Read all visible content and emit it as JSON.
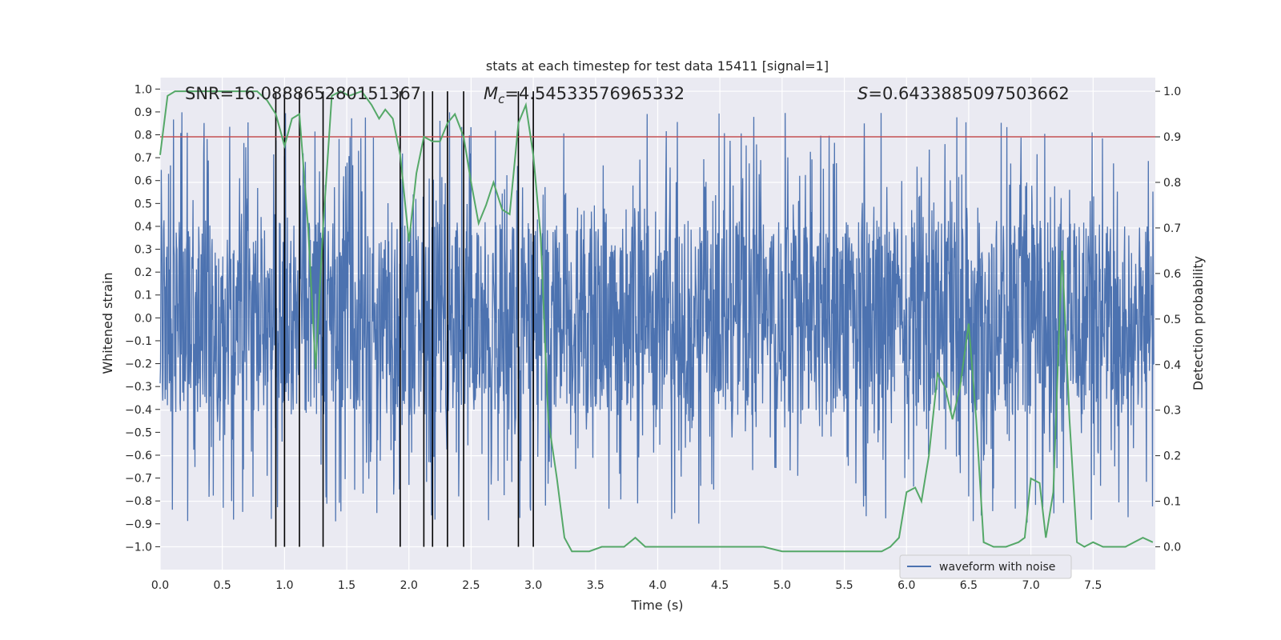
{
  "chart_data": {
    "type": "line",
    "title": "stats at each timestep for test data 15411 [signal=1]",
    "xlabel": "Time (s)",
    "ylabel": "Whitened strain",
    "y2label": "Detection probability",
    "xlim": [
      0.0,
      8.0
    ],
    "ylim": [
      -1.1,
      1.05
    ],
    "y2lim": [
      -0.05,
      1.03
    ],
    "xticks": [
      "0.0",
      "0.5",
      "1.0",
      "1.5",
      "2.0",
      "2.5",
      "3.0",
      "3.5",
      "4.0",
      "4.5",
      "5.0",
      "5.5",
      "6.0",
      "6.5",
      "7.0",
      "7.5"
    ],
    "yticks": [
      "1.0",
      "0.9",
      "0.8",
      "0.7",
      "0.6",
      "0.5",
      "0.4",
      "0.3",
      "0.2",
      "0.1",
      "0.0",
      "−0.1",
      "−0.2",
      "−0.3",
      "−0.4",
      "−0.5",
      "−0.6",
      "−0.7",
      "−0.8",
      "−0.9",
      "−1.0"
    ],
    "y2ticks": [
      "1.0",
      "0.9",
      "0.8",
      "0.7",
      "0.6",
      "0.5",
      "0.4",
      "0.3",
      "0.2",
      "0.1",
      "0.0"
    ],
    "annotations": {
      "snr": "SNR=16.088865280151367",
      "mc_symbol": "M",
      "mc_sub": "c",
      "mc_value": "=4.54533576965332",
      "s_symbol": "S",
      "s_value": "=0.6433885097503662"
    },
    "legend": {
      "label": "waveform with noise",
      "position": "lower-right"
    },
    "threshold": {
      "value": 0.9,
      "axis": "right",
      "color": "#c44e52"
    },
    "vertical_lines": [
      0.93,
      1.0,
      1.12,
      1.31,
      1.93,
      2.12,
      2.19,
      2.31,
      2.44,
      2.88,
      3.0
    ],
    "detection_probability": {
      "x": [
        0.0,
        0.06,
        0.12,
        0.2,
        0.3,
        0.4,
        0.5,
        0.6,
        0.7,
        0.78,
        0.86,
        0.93,
        1.0,
        1.06,
        1.12,
        1.19,
        1.25,
        1.31,
        1.38,
        1.45,
        1.52,
        1.62,
        1.7,
        1.76,
        1.81,
        1.87,
        1.93,
        2.0,
        2.06,
        2.12,
        2.19,
        2.25,
        2.31,
        2.37,
        2.44,
        2.5,
        2.56,
        2.62,
        2.68,
        2.75,
        2.81,
        2.88,
        2.94,
        3.0,
        3.06,
        3.12,
        3.19,
        3.25,
        3.31,
        3.37,
        3.45,
        3.55,
        3.65,
        3.73,
        3.82,
        3.9,
        4.0,
        4.1,
        4.2,
        4.3,
        4.37,
        4.45,
        4.55,
        4.65,
        4.75,
        4.85,
        5.0,
        5.2,
        5.5,
        5.7,
        5.8,
        5.87,
        5.94,
        6.0,
        6.07,
        6.12,
        6.18,
        6.25,
        6.31,
        6.37,
        6.43,
        6.5,
        6.56,
        6.62,
        6.7,
        6.8,
        6.9,
        6.95,
        7.0,
        7.07,
        7.12,
        7.18,
        7.25,
        7.31,
        7.37,
        7.43,
        7.5,
        7.58,
        7.68,
        7.76,
        7.83,
        7.9,
        7.98
      ],
      "y": [
        0.86,
        0.99,
        1.0,
        1.0,
        1.0,
        1.0,
        1.0,
        1.0,
        1.0,
        1.0,
        0.98,
        0.95,
        0.88,
        0.94,
        0.95,
        0.7,
        0.39,
        0.7,
        0.99,
        1.0,
        0.99,
        1.0,
        0.97,
        0.94,
        0.96,
        0.94,
        0.86,
        0.67,
        0.82,
        0.9,
        0.89,
        0.89,
        0.93,
        0.95,
        0.9,
        0.8,
        0.71,
        0.75,
        0.8,
        0.74,
        0.73,
        0.93,
        0.97,
        0.86,
        0.68,
        0.28,
        0.15,
        0.02,
        -0.01,
        -0.01,
        -0.01,
        0.0,
        0.0,
        0.0,
        0.02,
        0.0,
        0.0,
        0.0,
        0.0,
        0.0,
        0.0,
        0.0,
        0.0,
        0.0,
        0.0,
        0.0,
        -0.01,
        -0.01,
        -0.01,
        -0.01,
        -0.01,
        0.0,
        0.02,
        0.12,
        0.13,
        0.1,
        0.2,
        0.38,
        0.35,
        0.28,
        0.35,
        0.49,
        0.28,
        0.01,
        0.0,
        0.0,
        0.01,
        0.02,
        0.15,
        0.14,
        0.02,
        0.12,
        0.65,
        0.28,
        0.01,
        0.0,
        0.01,
        0.0,
        0.0,
        0.0,
        0.01,
        0.02,
        0.01
      ]
    },
    "waveform": {
      "name": "waveform with noise",
      "color": "#4c72b0",
      "samples": 2600,
      "seed": 15411
    }
  }
}
